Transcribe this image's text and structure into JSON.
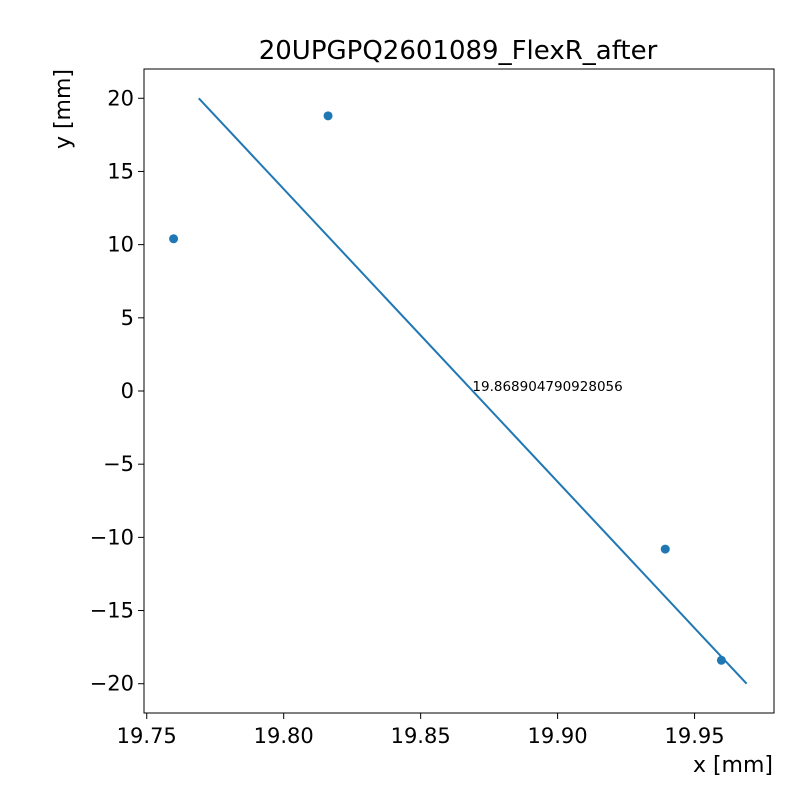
{
  "chart_data": {
    "type": "scatter",
    "title": "20UPGPQ2601089_FlexR_after",
    "xlabel": "x [mm]",
    "ylabel": "y [mm]",
    "xlim": [
      19.749,
      19.979
    ],
    "ylim": [
      -22,
      22
    ],
    "xticks": [
      19.75,
      19.8,
      19.85,
      19.9,
      19.95
    ],
    "xtick_labels": [
      "19.75",
      "19.80",
      "19.85",
      "19.90",
      "19.95"
    ],
    "yticks": [
      -20,
      -15,
      -10,
      -5,
      0,
      5,
      10,
      15,
      20
    ],
    "ytick_labels": [
      "−20",
      "−15",
      "−10",
      "−5",
      "0",
      "5",
      "10",
      "15",
      "20"
    ],
    "grid": false,
    "colors": {
      "series": "#1f77b4"
    },
    "points": [
      {
        "x": 19.7598,
        "y": 10.4
      },
      {
        "x": 19.8162,
        "y": 18.8
      },
      {
        "x": 19.9393,
        "y": -10.8
      },
      {
        "x": 19.9598,
        "y": -18.4
      }
    ],
    "fit_line": [
      {
        "x": 19.769,
        "y": 20
      },
      {
        "x": 19.969,
        "y": -20
      }
    ],
    "annotation": {
      "text": "19.868904790928056",
      "x": 19.8689,
      "y": 0
    }
  }
}
